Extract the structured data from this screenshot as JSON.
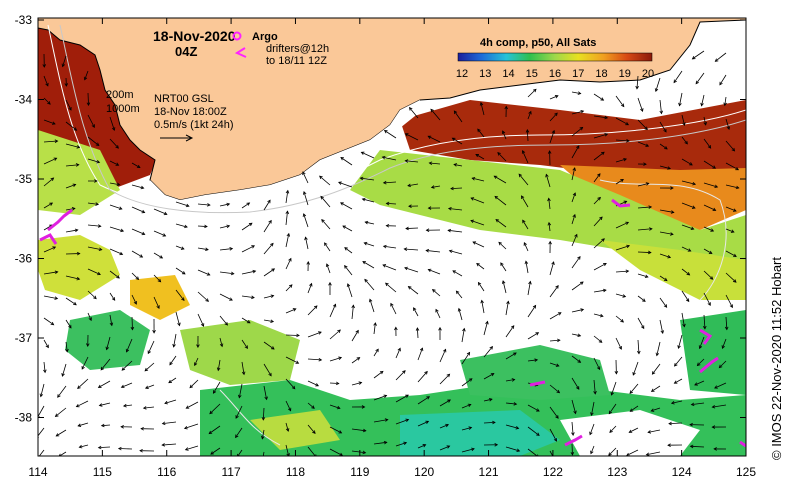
{
  "map": {
    "date": "18-Nov-2020",
    "time": "04Z",
    "legend_argo": "Argo",
    "legend_drifters_line1": "drifters@12h",
    "legend_drifters_line2": "to 18/11 12Z",
    "isobath_200": "200m",
    "isobath_1000": "1000m",
    "product": "NRT00 GSL",
    "product_time": "18-Nov 18:00Z",
    "vector_scale": "0.5m/s (1kt 24h)",
    "colorbar_title": "4h comp, p50, All Sats",
    "colorbar_ticks": [
      "12",
      "13",
      "14",
      "15",
      "16",
      "17",
      "18",
      "19",
      "20"
    ],
    "credit": "© IMOS 22-Nov-2020 11:52 Hobart"
  },
  "axes": {
    "lon_ticks": [
      "114",
      "115",
      "116",
      "117",
      "118",
      "119",
      "120",
      "121",
      "122",
      "123",
      "124",
      "125"
    ],
    "lat_ticks": [
      "-33",
      "-34",
      "-35",
      "-36",
      "-37",
      "-38"
    ]
  },
  "colors": {
    "land": "#fac898",
    "sst_warm": "#a01e0a",
    "sst_mid": "#9ed84a",
    "sst_cool": "#2ec04e",
    "argo": "#ff22ff",
    "drifter": "#e020e0"
  }
}
